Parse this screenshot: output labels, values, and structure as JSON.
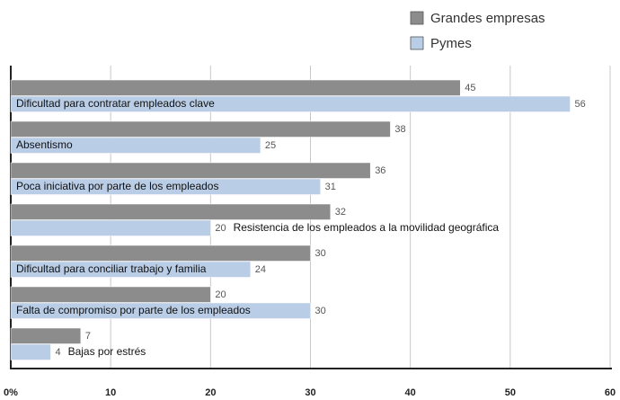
{
  "chart_data": {
    "type": "hbar",
    "categories": [
      "Dificultad para contratar empleados clave",
      "Absentismo",
      "Poca iniciativa por parte de los empleados",
      "Resistencia de los empleados a la movilidad geográfica",
      "Dificultad para conciliar trabajo y familia",
      "Falta de compromiso por parte de los empleados",
      "Bajas por estrés"
    ],
    "series": [
      {
        "name": "Grandes empresas",
        "color": "#8c8c8c",
        "values": [
          45,
          38,
          36,
          32,
          30,
          20,
          7
        ]
      },
      {
        "name": "Pymes",
        "color": "#b9cde6",
        "values": [
          56,
          25,
          31,
          20,
          24,
          30,
          4
        ]
      }
    ],
    "xlim": [
      0,
      60
    ],
    "xticks": [
      {
        "value": 0,
        "label": "0%"
      },
      10,
      20,
      30,
      40,
      50,
      60
    ],
    "grid": true,
    "legend": "top-right"
  }
}
